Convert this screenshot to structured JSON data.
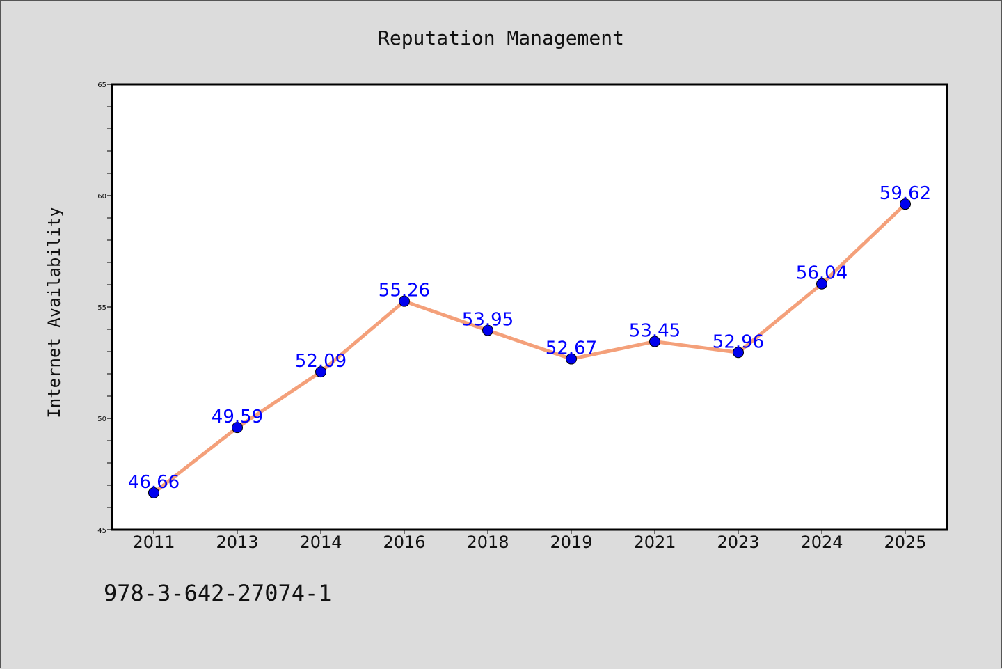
{
  "chart_data": {
    "type": "line",
    "title": "Reputation Management",
    "xlabel": "",
    "ylabel": "Internet Availability",
    "categories": [
      "2011",
      "2013",
      "2014",
      "2016",
      "2018",
      "2019",
      "2021",
      "2023",
      "2024",
      "2025"
    ],
    "values": [
      46.66,
      49.59,
      52.09,
      55.26,
      53.95,
      52.67,
      53.45,
      52.96,
      56.04,
      59.62
    ],
    "data_labels": [
      "46.66",
      "49.59",
      "52.09",
      "55.26",
      "53.95",
      "52.67",
      "53.45",
      "52.96",
      "56.04",
      "59.62"
    ],
    "ylim": [
      45,
      65
    ],
    "yticks": [
      "45",
      "50",
      "55",
      "60",
      "65"
    ],
    "grid": false,
    "legend": "none",
    "line_color": "#f4a07a",
    "marker_color": "#0000ee",
    "label_color": "#0000ff"
  },
  "footer": {
    "code": "978-3-642-27074-1"
  }
}
